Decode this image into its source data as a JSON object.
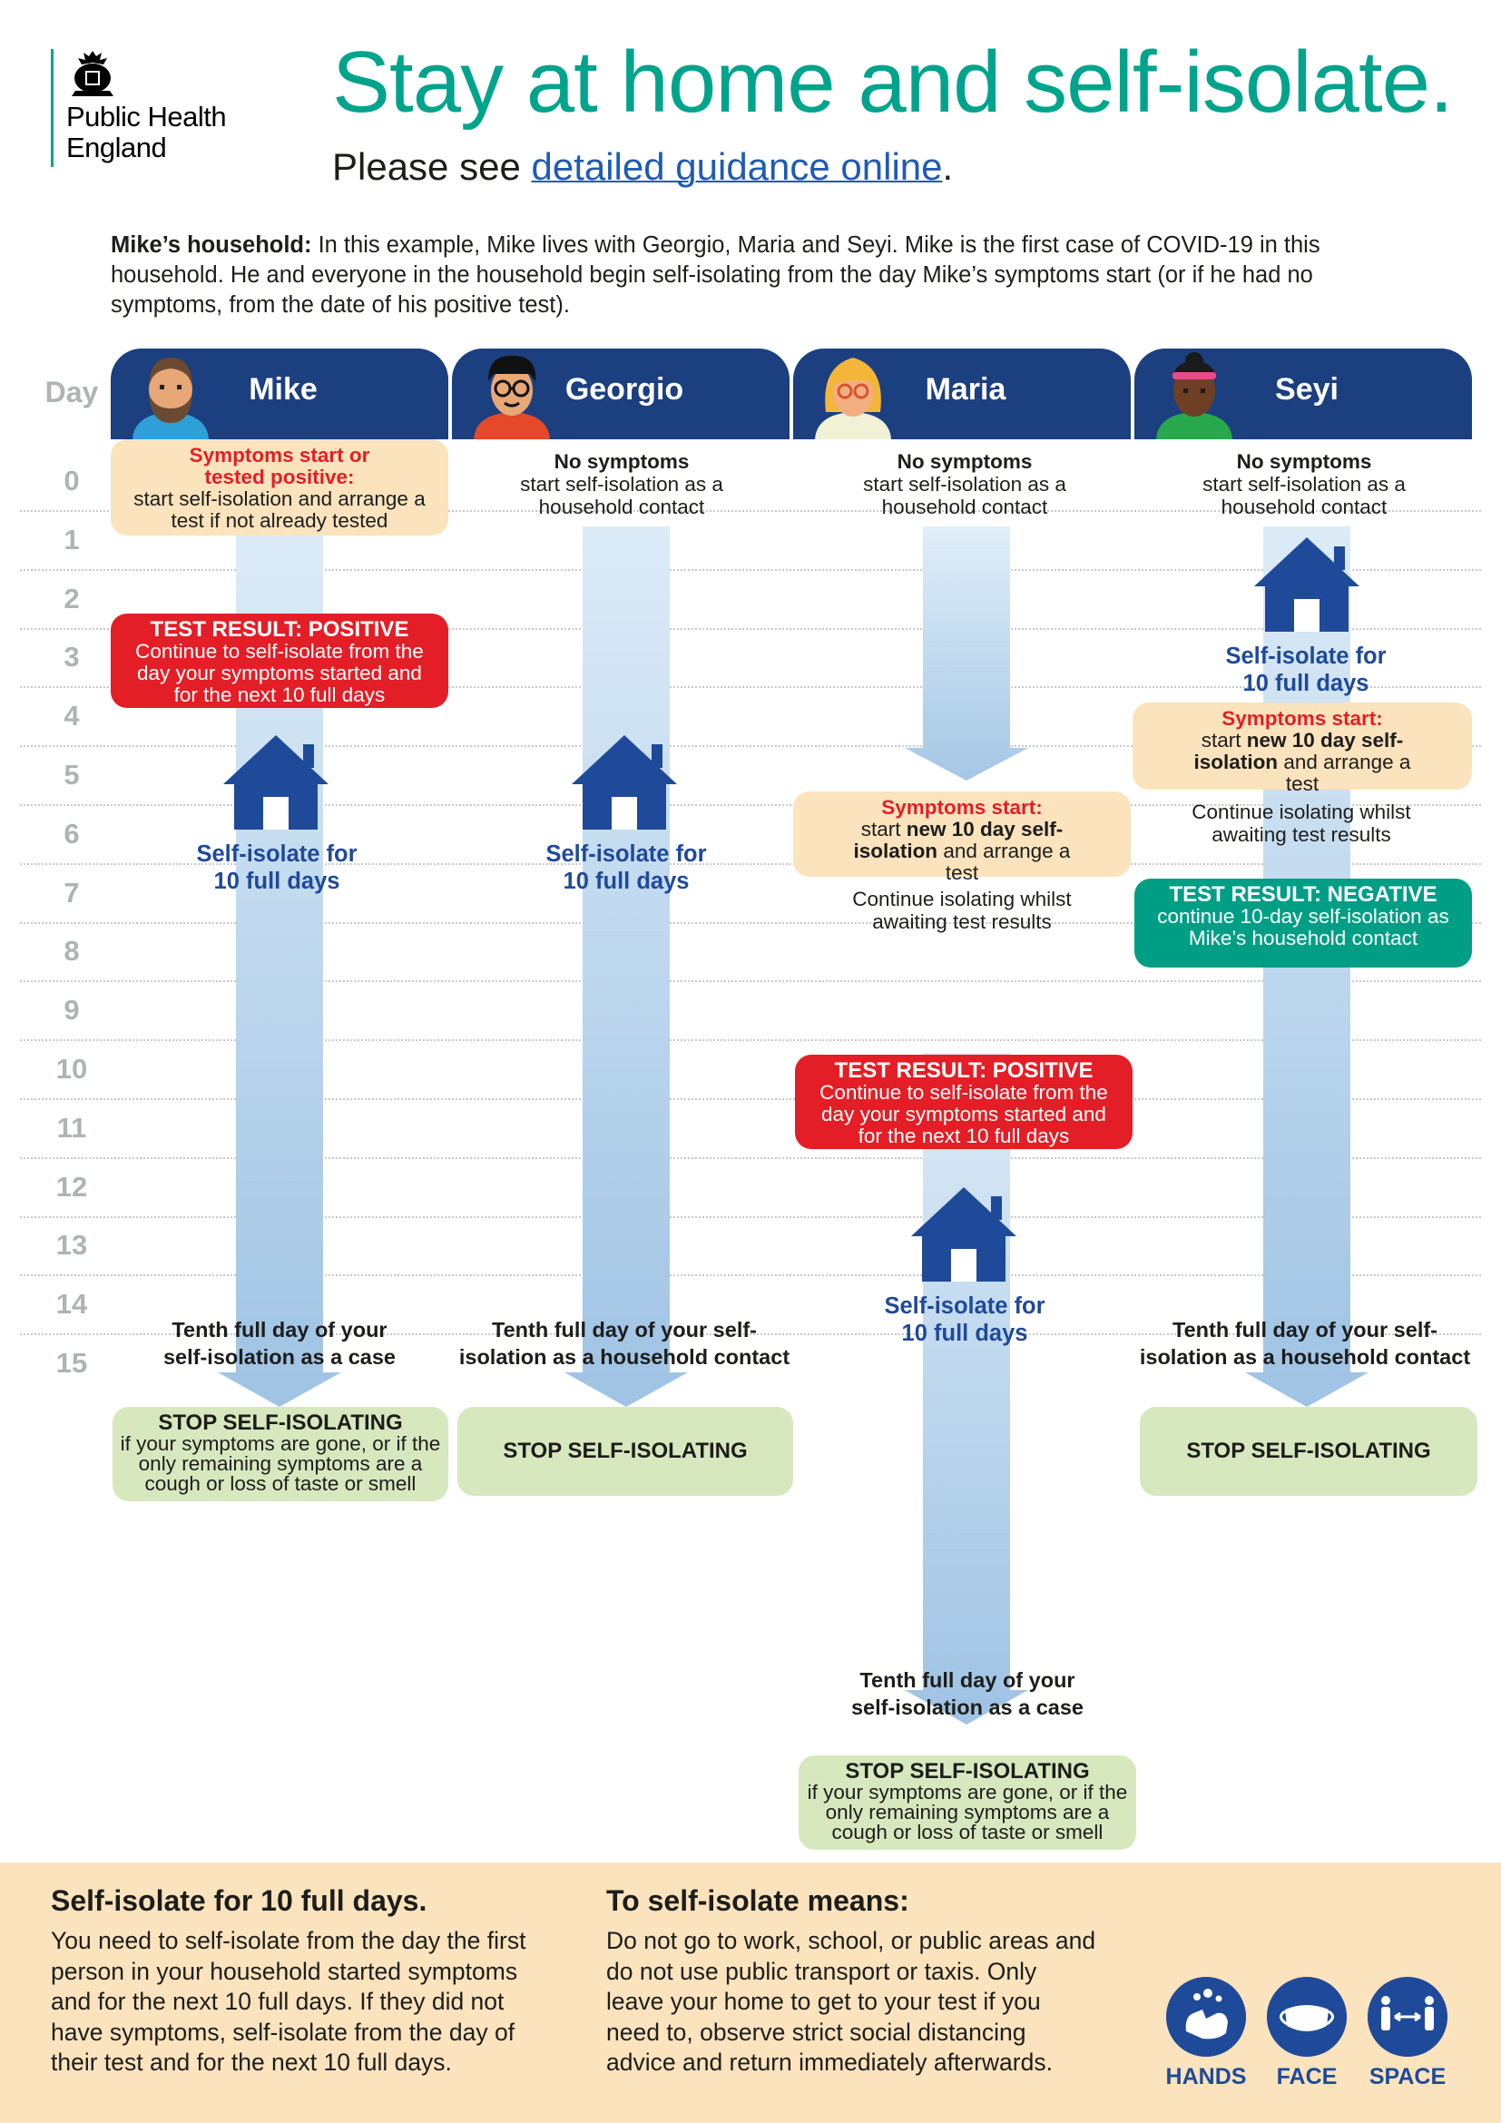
{
  "header": {
    "org_line1": "Public Health",
    "org_line2": "England",
    "title": "Stay at home and self-isolate.",
    "subtitle_prefix": "Please see ",
    "subtitle_link": "detailed guidance online",
    "subtitle_suffix": "."
  },
  "intro": {
    "lead": "Mike’s household:",
    "text": " In this example, Mike lives with Georgio, Maria and Seyi. Mike is the first case of COVID-19 in this household. He and everyone in the household begin self-isolating from the day Mike’s symptoms start (or if he had no symptoms, from the date of his positive test)."
  },
  "timeline": {
    "day_label": "Day",
    "days": [
      "0",
      "1",
      "2",
      "3",
      "4",
      "5",
      "6",
      "7",
      "8",
      "9",
      "10",
      "11",
      "12",
      "13",
      "14",
      "15"
    ]
  },
  "people": {
    "mike": {
      "name": "Mike",
      "day0_title": "Symptoms start or tested positive:",
      "day0_text": "start self-isolation and arrange a test if not already tested",
      "result_title": "TEST RESULT: POSITIVE",
      "result_text": "Continue to self-isolate from the day your symptoms started and for the next 10 full days",
      "iso_line1": "Self-isolate for",
      "iso_line2": "10 full days",
      "tenth_line1": "Tenth full day of your",
      "tenth_line2": "self-isolation as a case",
      "stop_title": "STOP SELF-ISOLATING",
      "stop_text": "if your symptoms are gone, or if the only remaining symptoms are a cough or loss of taste or smell"
    },
    "georgio": {
      "name": "Georgio",
      "day0_title": "No symptoms",
      "day0_text": "start self-isolation as a household contact",
      "iso_line1": "Self-isolate for",
      "iso_line2": "10 full days",
      "tenth_line1": "Tenth full day of your self-",
      "tenth_line2": "isolation as a household contact",
      "stop_title": "STOP SELF-ISOLATING"
    },
    "maria": {
      "name": "Maria",
      "day0_title": "No symptoms",
      "day0_text": "start self-isolation as a household contact",
      "symptoms_title": "Symptoms start:",
      "symptoms_pre": "start ",
      "symptoms_bold": "new 10 day self-isolation",
      "symptoms_post": " and arrange a test",
      "awaiting": "Continue isolating whilst awaiting test results",
      "result_title": "TEST RESULT: POSITIVE",
      "result_text": "Continue to self-isolate from the day your symptoms started and for the next 10 full days",
      "iso_line1": "Self-isolate for",
      "iso_line2": "10 full days",
      "tenth_line1": "Tenth full day of your",
      "tenth_line2": "self-isolation as a case",
      "stop_title": "STOP SELF-ISOLATING",
      "stop_text": "if your symptoms are gone, or if the only remaining symptoms are a cough or loss of taste or smell"
    },
    "seyi": {
      "name": "Seyi",
      "day0_title": "No symptoms",
      "day0_text": "start self-isolation as a household contact",
      "iso_line1": "Self-isolate for",
      "iso_line2": "10 full days",
      "symptoms_title": "Symptoms start:",
      "symptoms_pre": "start ",
      "symptoms_bold": "new 10 day self-isolation",
      "symptoms_post": " and arrange a test",
      "awaiting": "Continue isolating whilst awaiting test results",
      "result_title": "TEST RESULT: NEGATIVE",
      "result_text": "continue 10-day self-isolation as Mike’s household contact",
      "tenth_line1": "Tenth full day of your self-",
      "tenth_line2": "isolation as a household contact",
      "stop_title": "STOP SELF-ISOLATING"
    }
  },
  "footer": {
    "left_title": "Self-isolate for 10 full days.",
    "left_text": "You need to self-isolate from the day the first person in your household started symptoms and for the next 10 full days. If they did not have symptoms, self-isolate from the day of their test and for the next 10 full days.",
    "right_title": "To self-isolate means:",
    "right_text": "Do not go to work, school, or public areas and do not use public transport or taxis. Only leave your home to get to your test if you need to, observe strict social distancing advice and return immediately afterwards.",
    "badges": [
      "HANDS",
      "FACE",
      "SPACE"
    ]
  },
  "colors": {
    "navy": "#1b3f7f",
    "teal_title": "#00a48c",
    "red": "#e41e26",
    "green": "#009f85",
    "light_green": "#d7e8be",
    "peach": "#fbe3bd",
    "iso_blue": "#1f4a9a"
  }
}
